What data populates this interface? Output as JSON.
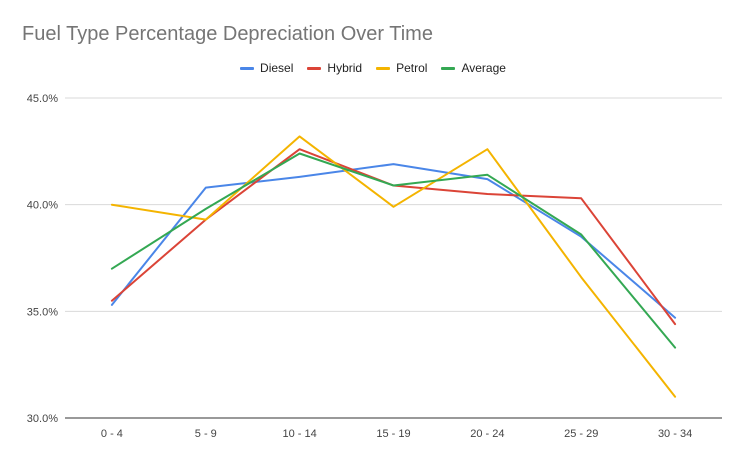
{
  "chart_data": {
    "type": "line",
    "title": "Fuel Type Percentage Depreciation Over Time",
    "xlabel": "",
    "ylabel": "",
    "categories": [
      "0 - 4",
      "5 - 9",
      "10 - 14",
      "15 - 19",
      "20 - 24",
      "25 - 29",
      "30 - 34"
    ],
    "ylim": [
      30,
      45
    ],
    "yticks": [
      30,
      35,
      40,
      45
    ],
    "ytick_labels": [
      "30.0%",
      "35.0%",
      "40.0%",
      "45.0%"
    ],
    "grid": true,
    "legend_position": "top",
    "series": [
      {
        "name": "Diesel",
        "color": "#4a86e8",
        "values": [
          35.3,
          40.8,
          41.3,
          41.9,
          41.2,
          38.5,
          34.7
        ]
      },
      {
        "name": "Hybrid",
        "color": "#db4437",
        "values": [
          35.5,
          39.3,
          42.6,
          40.9,
          40.5,
          40.3,
          34.4
        ]
      },
      {
        "name": "Petrol",
        "color": "#f4b400",
        "values": [
          40.0,
          39.3,
          43.2,
          39.9,
          42.6,
          36.6,
          31.0
        ]
      },
      {
        "name": "Average",
        "color": "#34a853",
        "values": [
          37.0,
          39.8,
          42.4,
          40.9,
          41.4,
          38.6,
          33.3
        ]
      }
    ]
  }
}
